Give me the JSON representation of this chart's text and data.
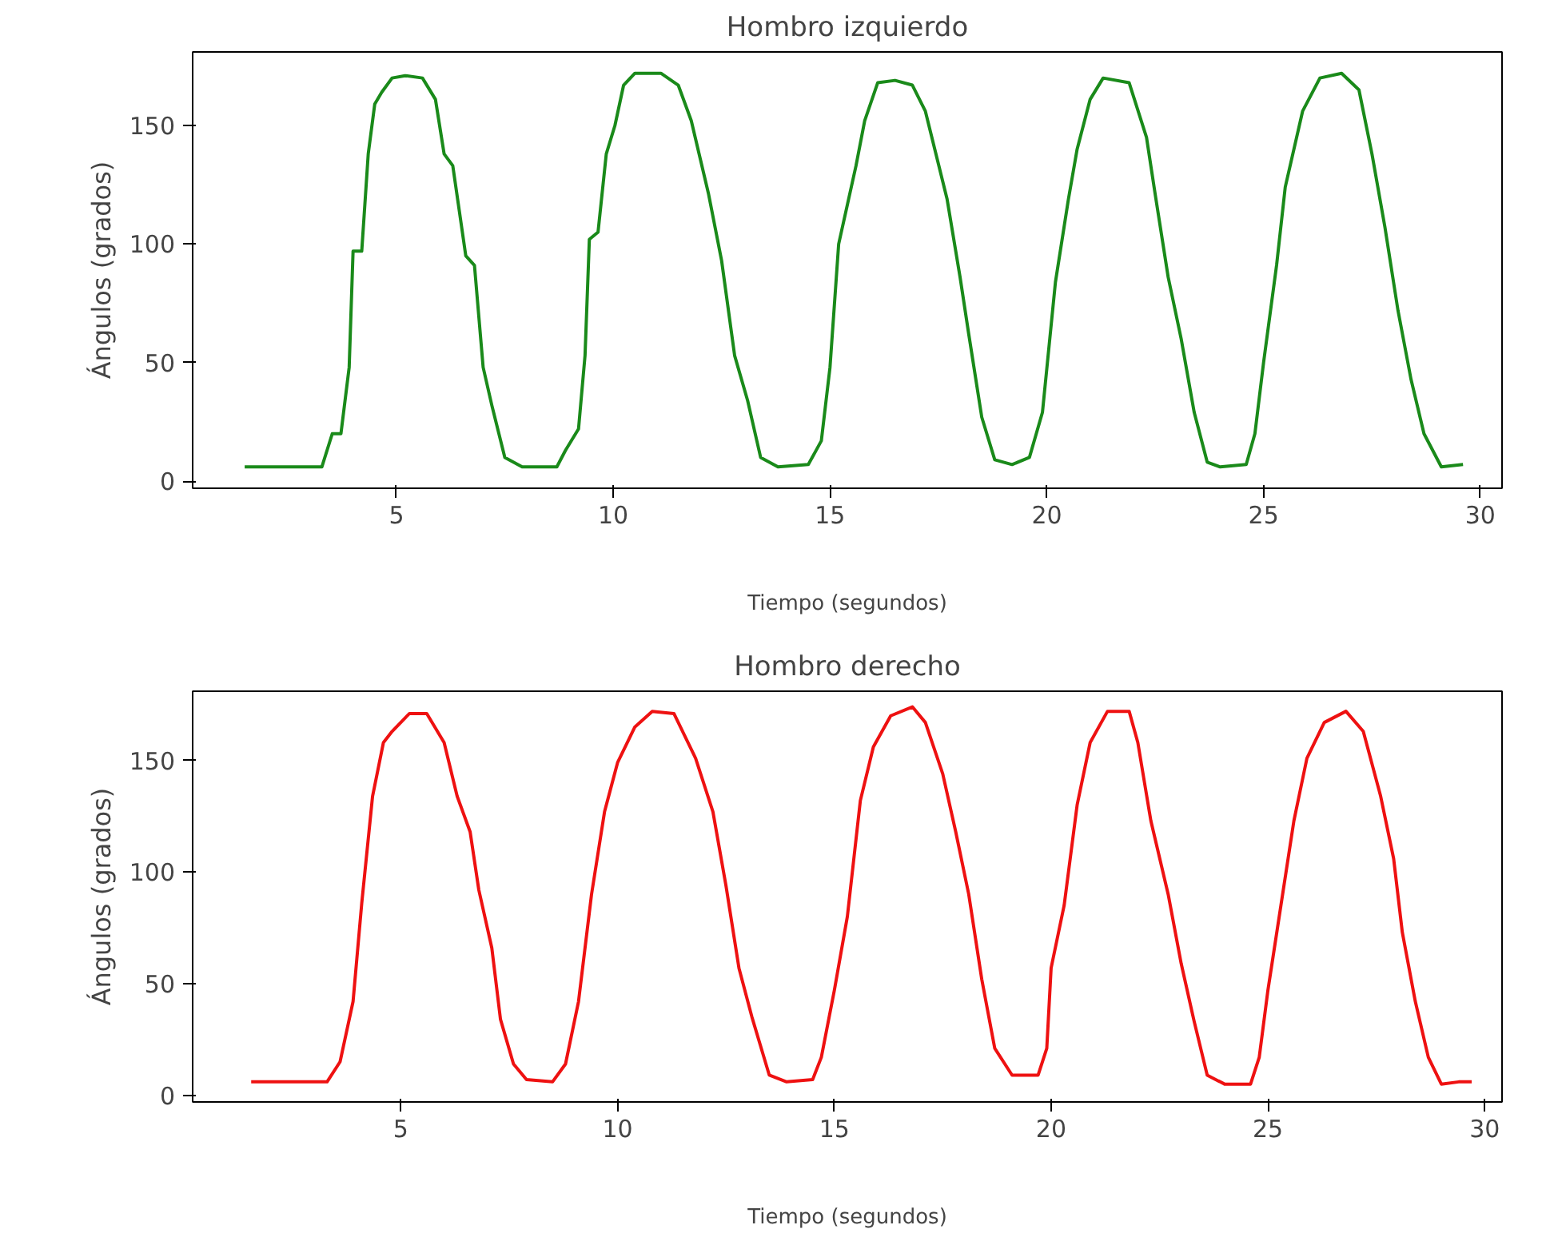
{
  "chart_data": [
    {
      "type": "line",
      "title": "Hombro izquierdo",
      "xlabel": "Tiempo (segundos)",
      "ylabel": "Ángulos (grados)",
      "xlim": [
        0.3,
        30.5
      ],
      "ylim": [
        -3,
        181
      ],
      "xticks": [
        5,
        10,
        15,
        20,
        25,
        30
      ],
      "yticks": [
        0,
        50,
        100,
        150
      ],
      "grid": false,
      "x": [
        1.5,
        3.28,
        3.52,
        3.72,
        3.91,
        4.0,
        4.2,
        4.35,
        4.5,
        4.66,
        4.9,
        5.2,
        5.6,
        5.9,
        6.1,
        6.3,
        6.6,
        6.8,
        7.0,
        7.2,
        7.5,
        7.9,
        8.7,
        8.9,
        9.2,
        9.35,
        9.45,
        9.65,
        9.84,
        10.04,
        10.24,
        10.5,
        11.1,
        11.5,
        11.8,
        12.2,
        12.5,
        12.8,
        13.1,
        13.4,
        13.8,
        14.5,
        14.8,
        15.0,
        15.2,
        15.6,
        15.8,
        16.1,
        16.5,
        16.9,
        17.2,
        17.7,
        18.0,
        18.2,
        18.5,
        18.8,
        19.2,
        19.6,
        19.9,
        20.2,
        20.5,
        20.7,
        21.0,
        21.3,
        21.9,
        22.3,
        22.5,
        22.8,
        23.1,
        23.4,
        23.7,
        24.0,
        24.6,
        24.8,
        25.0,
        25.3,
        25.5,
        25.9,
        26.3,
        26.8,
        27.2,
        27.5,
        27.8,
        28.1,
        28.4,
        28.7,
        29.1,
        29.6
      ],
      "series": [
        {
          "color": "#1a8a1a",
          "values": [
            6,
            6,
            20,
            20,
            48,
            97,
            97,
            138,
            159,
            164,
            170,
            171,
            170,
            161,
            138,
            133,
            95,
            91,
            48,
            32,
            10,
            6,
            6,
            13,
            22,
            53,
            102,
            105,
            138,
            150,
            167,
            172,
            172,
            167,
            152,
            121,
            93,
            53,
            34,
            10,
            6,
            7,
            17,
            48,
            100,
            133,
            152,
            168,
            169,
            167,
            156,
            119,
            86,
            62,
            27,
            9,
            7,
            10,
            29,
            84,
            119,
            140,
            161,
            170,
            168,
            145,
            121,
            86,
            60,
            29,
            8,
            6,
            7,
            20,
            50,
            91,
            124,
            156,
            170,
            172,
            165,
            138,
            107,
            72,
            43,
            20,
            6,
            7
          ]
        }
      ]
    },
    {
      "type": "line",
      "title": "Hombro derecho",
      "xlabel": "Tiempo (segundos)",
      "ylabel": "Ángulos (grados)",
      "xlim": [
        0.2,
        30.4
      ],
      "ylim": [
        -3,
        181
      ],
      "xticks": [
        5,
        10,
        15,
        20,
        25,
        30
      ],
      "yticks": [
        0,
        50,
        100,
        150
      ],
      "grid": false,
      "x": [
        1.55,
        3.3,
        3.6,
        3.9,
        4.1,
        4.35,
        4.6,
        4.8,
        5.2,
        5.6,
        6.0,
        6.3,
        6.6,
        6.8,
        7.1,
        7.3,
        7.6,
        7.9,
        8.5,
        8.8,
        9.1,
        9.4,
        9.7,
        10.0,
        10.4,
        10.8,
        11.3,
        11.8,
        12.2,
        12.5,
        12.8,
        13.1,
        13.5,
        13.9,
        14.5,
        14.7,
        15.0,
        15.3,
        15.6,
        15.9,
        16.3,
        16.8,
        17.1,
        17.5,
        17.8,
        18.1,
        18.4,
        18.7,
        19.1,
        19.7,
        19.9,
        20.0,
        20.3,
        20.6,
        20.9,
        21.3,
        21.8,
        22.0,
        22.3,
        22.7,
        23.0,
        23.3,
        23.6,
        24.0,
        24.6,
        24.8,
        25.0,
        25.3,
        25.6,
        25.9,
        26.3,
        26.8,
        27.2,
        27.6,
        27.9,
        28.1,
        28.4,
        28.7,
        29.0,
        29.4,
        29.7
      ],
      "series": [
        {
          "color": "#ee1111",
          "values": [
            6,
            6,
            15,
            42,
            86,
            134,
            158,
            163,
            171,
            171,
            158,
            134,
            118,
            92,
            66,
            34,
            14,
            7,
            6,
            14,
            42,
            90,
            127,
            149,
            165,
            172,
            171,
            151,
            127,
            94,
            57,
            35,
            9,
            6,
            7,
            17,
            47,
            80,
            132,
            156,
            170,
            174,
            167,
            144,
            118,
            90,
            52,
            21,
            9,
            9,
            21,
            57,
            85,
            130,
            158,
            172,
            172,
            158,
            123,
            90,
            59,
            33,
            9,
            5,
            5,
            17,
            47,
            85,
            123,
            151,
            167,
            172,
            163,
            134,
            106,
            73,
            42,
            17,
            5,
            6,
            6
          ]
        }
      ]
    }
  ]
}
